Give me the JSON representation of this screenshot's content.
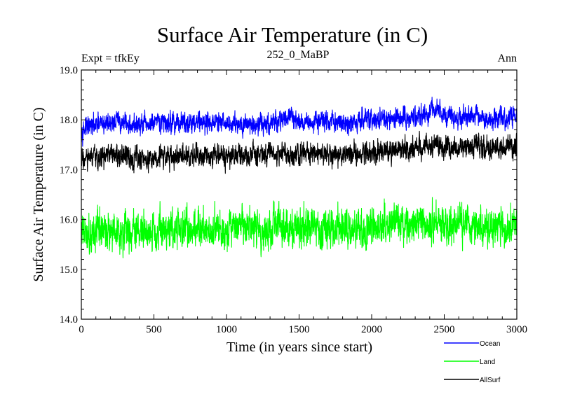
{
  "chart_data": {
    "type": "line",
    "title": "Surface Air Temperature (in C)",
    "subtitle_left": "Expt = tfkEy",
    "subtitle_center": "252_0_MaBP",
    "subtitle_right": "Ann",
    "xlabel": "Time (in years since start)",
    "ylabel": "Surface Air Temperature (in C)",
    "xlim": [
      0,
      3000
    ],
    "ylim": [
      14.0,
      19.0
    ],
    "xticks": [
      0,
      500,
      1000,
      1500,
      2000,
      2500,
      3000
    ],
    "yticks": [
      14.0,
      15.0,
      16.0,
      17.0,
      18.0,
      19.0
    ],
    "xtick_labels": [
      "0",
      "500",
      "1000",
      "1500",
      "2000",
      "2500",
      "3000"
    ],
    "ytick_labels": [
      "14.0",
      "15.0",
      "16.0",
      "17.0",
      "18.0",
      "19.0"
    ],
    "legend_position": "below-right",
    "series": [
      {
        "name": "Ocean",
        "color": "#0000ff",
        "x": [
          0,
          100,
          200,
          250,
          300,
          400,
          500,
          600,
          700,
          800,
          900,
          1000,
          1100,
          1200,
          1300,
          1400,
          1450,
          1500,
          1600,
          1700,
          1800,
          1900,
          2000,
          2100,
          2200,
          2300,
          2400,
          2450,
          2500,
          2600,
          2700,
          2800,
          2900,
          3000
        ],
        "values": [
          17.82,
          17.88,
          17.95,
          17.98,
          17.92,
          17.88,
          17.92,
          17.95,
          17.93,
          17.98,
          17.95,
          17.92,
          17.95,
          17.9,
          17.92,
          18.03,
          18.05,
          17.98,
          17.95,
          17.98,
          17.92,
          17.98,
          18.0,
          17.98,
          18.02,
          18.05,
          18.12,
          18.22,
          18.08,
          18.05,
          18.12,
          17.98,
          18.02,
          18.08
        ],
        "noise": 0.09
      },
      {
        "name": "Land",
        "color": "#00ff00",
        "x": [
          0,
          100,
          200,
          300,
          400,
          500,
          600,
          700,
          800,
          900,
          1000,
          1100,
          1200,
          1300,
          1400,
          1500,
          1600,
          1700,
          1800,
          1900,
          2000,
          2100,
          2200,
          2300,
          2400,
          2500,
          2600,
          2700,
          2800,
          2900,
          3000
        ],
        "values": [
          15.72,
          15.75,
          15.8,
          15.78,
          15.75,
          15.78,
          15.8,
          15.78,
          15.85,
          15.8,
          15.78,
          15.82,
          15.8,
          15.82,
          15.88,
          15.82,
          15.85,
          15.82,
          15.85,
          15.8,
          15.85,
          15.88,
          15.85,
          15.88,
          15.9,
          15.88,
          15.9,
          15.88,
          15.85,
          15.88,
          15.9
        ],
        "noise": 0.17
      },
      {
        "name": "AllSurf",
        "color": "#000000",
        "x": [
          0,
          100,
          200,
          300,
          400,
          500,
          600,
          700,
          800,
          900,
          1000,
          1100,
          1200,
          1300,
          1400,
          1500,
          1600,
          1700,
          1800,
          1900,
          2000,
          2100,
          2200,
          2300,
          2400,
          2450,
          2500,
          2600,
          2700,
          2800,
          2900,
          3000
        ],
        "values": [
          17.2,
          17.22,
          17.28,
          17.25,
          17.22,
          17.25,
          17.28,
          17.27,
          17.33,
          17.3,
          17.27,
          17.3,
          17.28,
          17.3,
          17.35,
          17.3,
          17.33,
          17.3,
          17.33,
          17.3,
          17.35,
          17.38,
          17.4,
          17.42,
          17.48,
          17.52,
          17.45,
          17.42,
          17.47,
          17.4,
          17.42,
          17.48
        ],
        "noise": 0.1
      }
    ]
  }
}
